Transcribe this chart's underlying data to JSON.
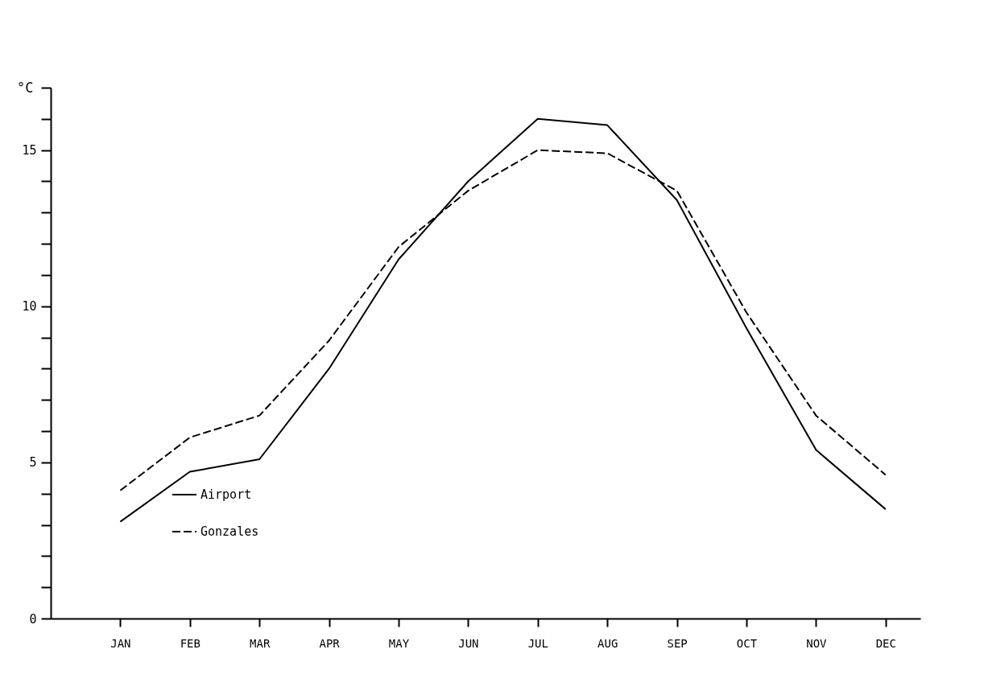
{
  "chart_data": {
    "type": "line",
    "ylabel": "°C",
    "categories": [
      "JAN",
      "FEB",
      "MAR",
      "APR",
      "MAY",
      "JUN",
      "JUL",
      "AUG",
      "SEP",
      "OCT",
      "NOV",
      "DEC"
    ],
    "series": [
      {
        "name": "Airport",
        "color": "#000000",
        "line_style": "solid",
        "values": [
          3.1,
          4.7,
          5.1,
          8.0,
          11.5,
          14.0,
          16.0,
          15.8,
          13.4,
          9.3,
          5.4,
          3.5
        ]
      },
      {
        "name": "Gonzales",
        "color": "#000000",
        "line_style": "dashed",
        "values": [
          4.1,
          5.8,
          6.5,
          8.9,
          11.9,
          13.7,
          15.0,
          14.9,
          13.7,
          9.8,
          6.5,
          4.6
        ]
      }
    ],
    "ylim": [
      0,
      17
    ],
    "yticks": [
      0,
      {
        "value": 1,
        "label": null
      },
      {
        "value": 2,
        "label": null
      },
      {
        "value": 3,
        "label": null
      },
      {
        "value": 4,
        "label": null
      },
      5,
      {
        "value": 6,
        "label": null
      },
      {
        "value": 7,
        "label": null
      },
      {
        "value": 8,
        "label": null
      },
      {
        "value": 9,
        "label": null
      },
      10,
      {
        "value": 11,
        "label": null
      },
      {
        "value": 12,
        "label": null
      },
      {
        "value": 13,
        "label": null
      },
      {
        "value": 14,
        "label": null
      },
      15,
      {
        "value": 16,
        "label": null
      },
      {
        "value": 17,
        "label": null
      }
    ],
    "grid": false,
    "legend": "bottom left",
    "marker": "none"
  }
}
